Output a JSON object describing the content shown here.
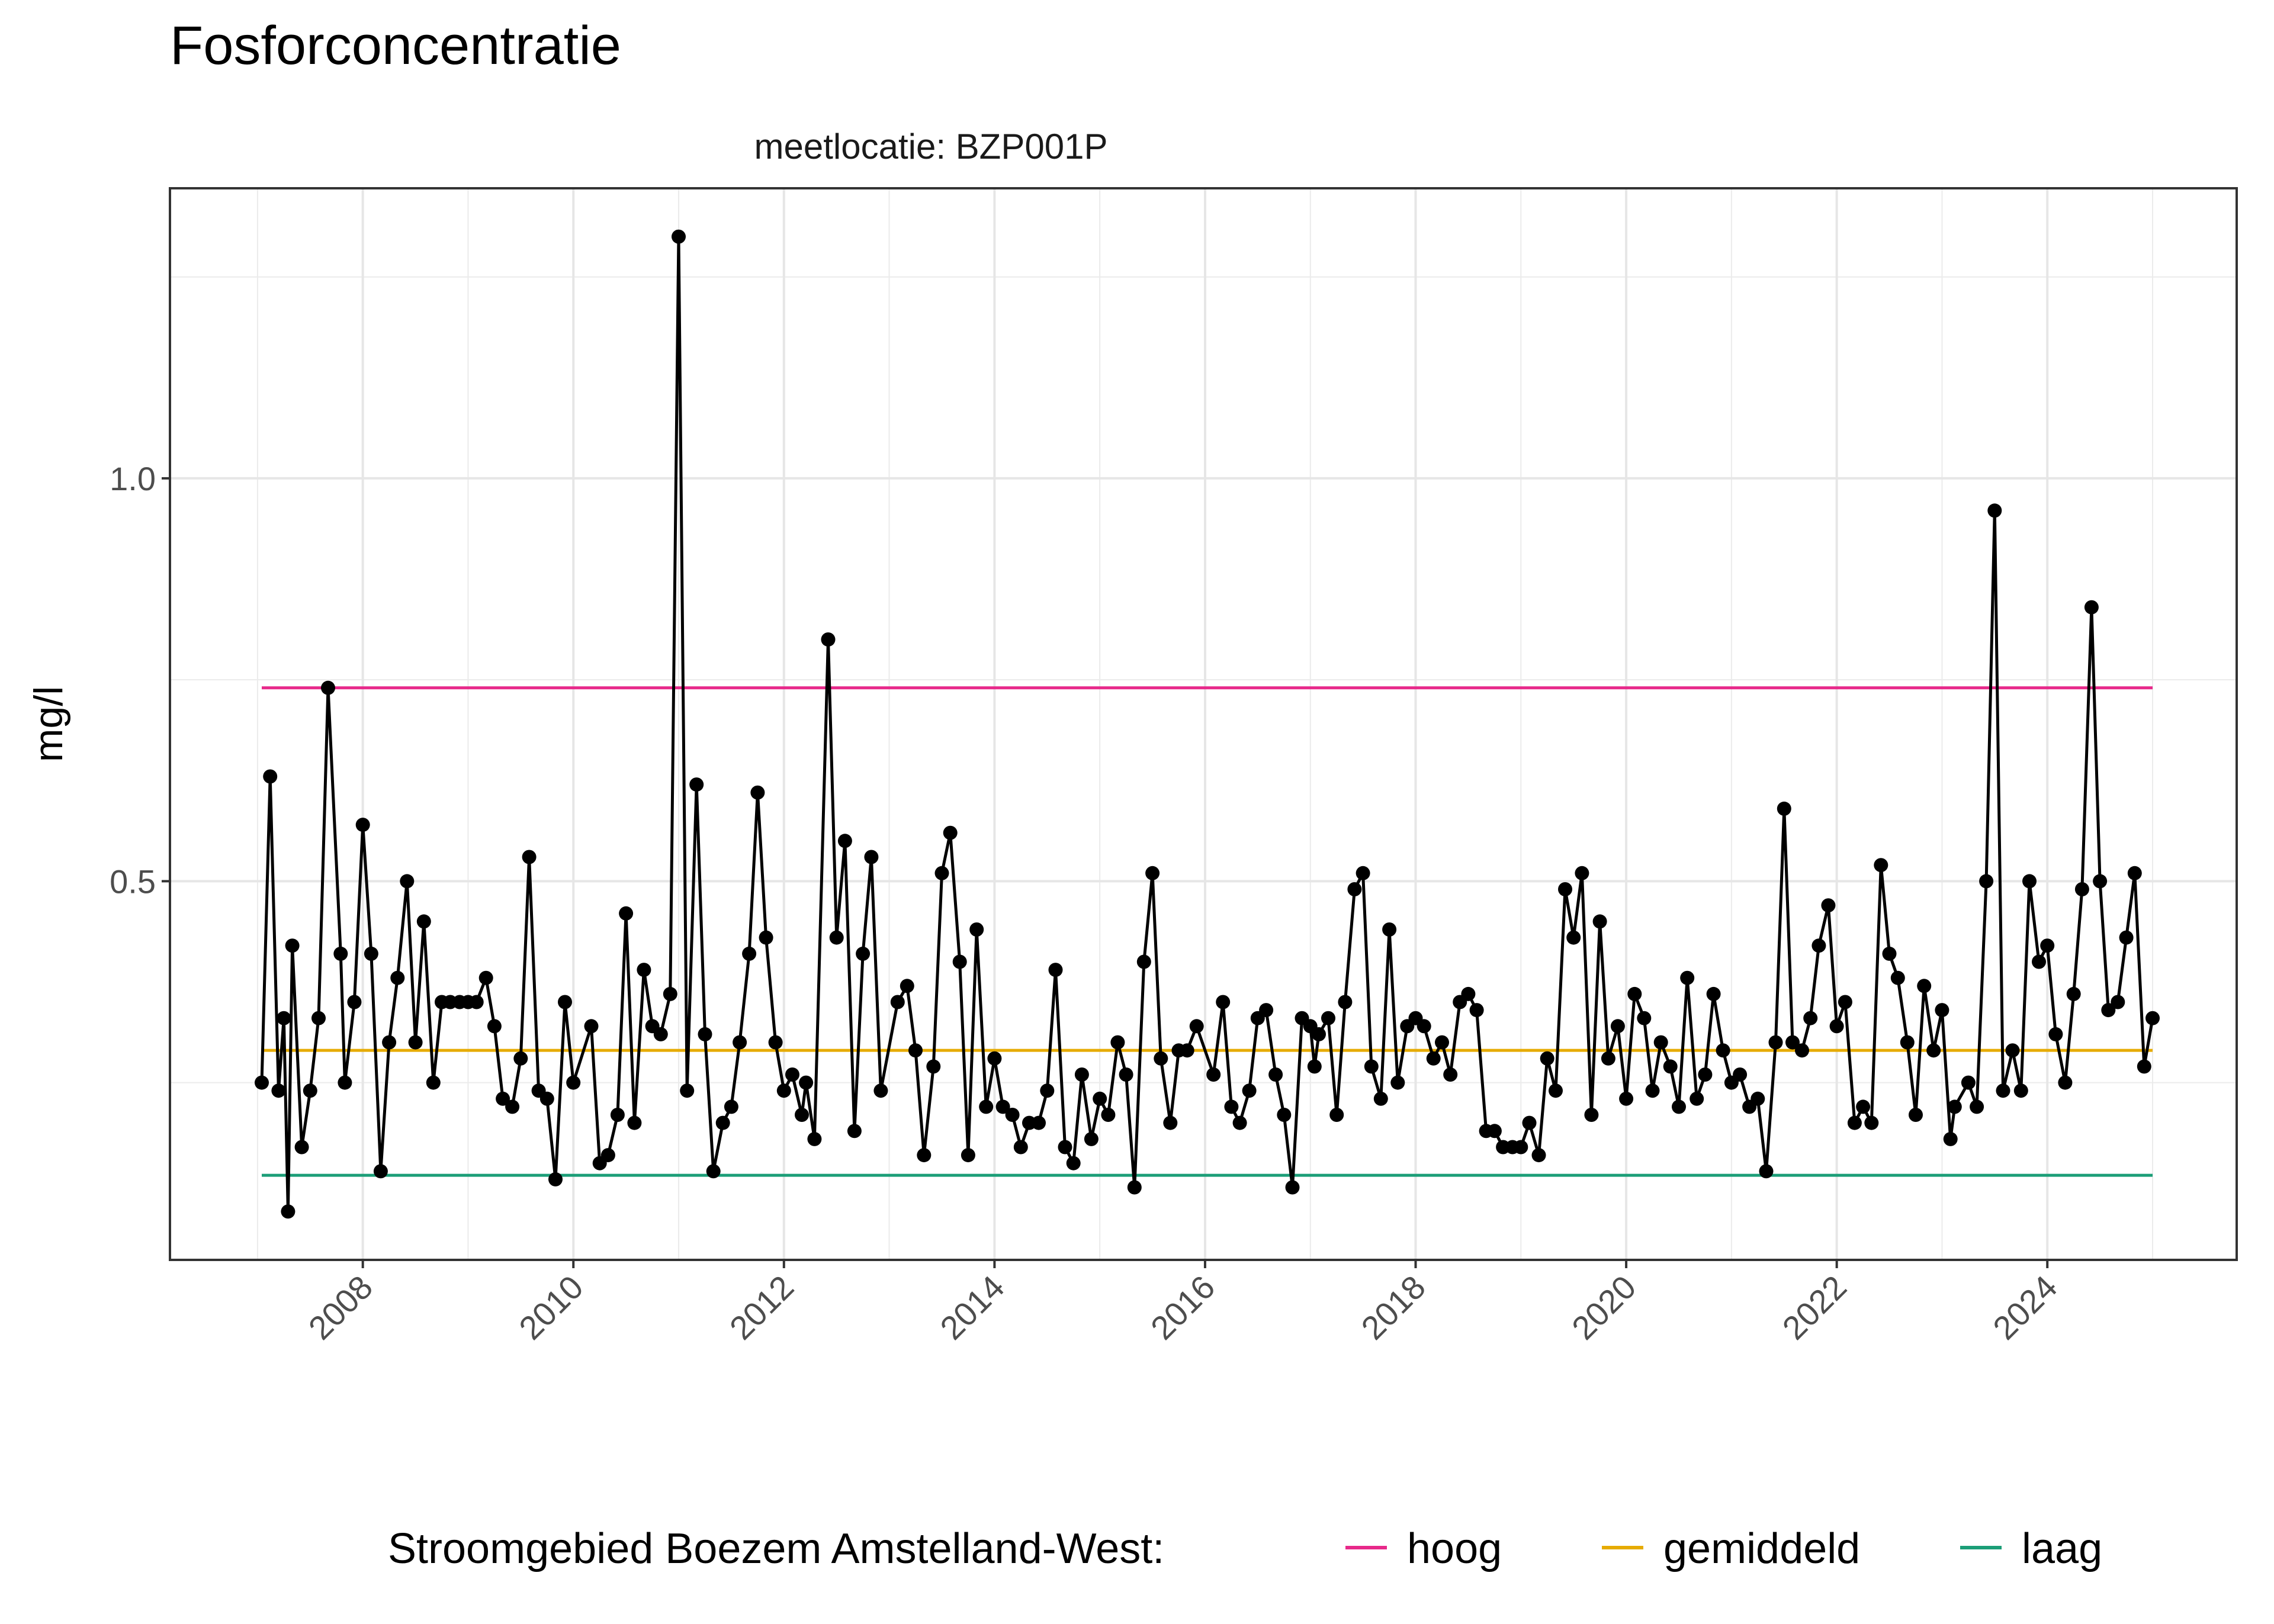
{
  "chart_data": {
    "type": "line",
    "title": "Fosforconcentratie",
    "facet_label": "meetlocatie: BZP001P",
    "ylabel": "mg/l",
    "xlabel": "",
    "xlim": [
      2007.0,
      2025.0
    ],
    "ylim": [
      0.03,
      1.36
    ],
    "grid": true,
    "x_ticks": [
      {
        "value": 2008,
        "label": "2008"
      },
      {
        "value": 2010,
        "label": "2010"
      },
      {
        "value": 2012,
        "label": "2012"
      },
      {
        "value": 2014,
        "label": "2014"
      },
      {
        "value": 2016,
        "label": "2016"
      },
      {
        "value": 2018,
        "label": "2018"
      },
      {
        "value": 2020,
        "label": "2020"
      },
      {
        "value": 2022,
        "label": "2022"
      },
      {
        "value": 2024,
        "label": "2024"
      }
    ],
    "y_ticks": [
      {
        "value": 0.5,
        "label": "0.5"
      },
      {
        "value": 1.0,
        "label": "1.0"
      }
    ],
    "legend": {
      "title": "Stroomgebied Boezem Amstelland-West:",
      "position": "bottom",
      "entries": [
        {
          "label": "hoog",
          "color": "#e7298a"
        },
        {
          "label": "gemiddeld",
          "color": "#e6ab02"
        },
        {
          "label": "laag",
          "color": "#1b9e77"
        }
      ]
    },
    "reference_lines": [
      {
        "name": "hoog",
        "value": 0.74,
        "color": "#e7298a",
        "x_start": 2007.04,
        "x_end": 2025.0
      },
      {
        "name": "gemiddeld",
        "value": 0.29,
        "color": "#e6ab02",
        "x_start": 2007.04,
        "x_end": 2025.0
      },
      {
        "name": "laag",
        "value": 0.135,
        "color": "#1b9e77",
        "x_start": 2007.04,
        "x_end": 2025.0
      }
    ],
    "series": [
      {
        "color": "#000000",
        "points": [
          [
            2007.04,
            0.25
          ],
          [
            2007.12,
            0.63
          ],
          [
            2007.2,
            0.24
          ],
          [
            2007.25,
            0.33
          ],
          [
            2007.29,
            0.09
          ],
          [
            2007.33,
            0.42
          ],
          [
            2007.42,
            0.17
          ],
          [
            2007.5,
            0.24
          ],
          [
            2007.58,
            0.33
          ],
          [
            2007.67,
            0.74
          ],
          [
            2007.79,
            0.41
          ],
          [
            2007.83,
            0.25
          ],
          [
            2007.92,
            0.35
          ],
          [
            2008.0,
            0.57
          ],
          [
            2008.08,
            0.41
          ],
          [
            2008.17,
            0.14
          ],
          [
            2008.25,
            0.3
          ],
          [
            2008.33,
            0.38
          ],
          [
            2008.42,
            0.5
          ],
          [
            2008.5,
            0.3
          ],
          [
            2008.58,
            0.45
          ],
          [
            2008.67,
            0.25
          ],
          [
            2008.75,
            0.35
          ],
          [
            2008.83,
            0.35
          ],
          [
            2008.92,
            0.35
          ],
          [
            2009.0,
            0.35
          ],
          [
            2009.08,
            0.35
          ],
          [
            2009.17,
            0.38
          ],
          [
            2009.25,
            0.32
          ],
          [
            2009.33,
            0.23
          ],
          [
            2009.42,
            0.22
          ],
          [
            2009.5,
            0.28
          ],
          [
            2009.58,
            0.53
          ],
          [
            2009.67,
            0.24
          ],
          [
            2009.75,
            0.23
          ],
          [
            2009.83,
            0.13
          ],
          [
            2009.92,
            0.35
          ],
          [
            2010.0,
            0.25
          ],
          [
            2010.17,
            0.32
          ],
          [
            2010.25,
            0.15
          ],
          [
            2010.33,
            0.16
          ],
          [
            2010.42,
            0.21
          ],
          [
            2010.5,
            0.46
          ],
          [
            2010.58,
            0.2
          ],
          [
            2010.67,
            0.39
          ],
          [
            2010.75,
            0.32
          ],
          [
            2010.83,
            0.31
          ],
          [
            2010.92,
            0.36
          ],
          [
            2011.0,
            1.3
          ],
          [
            2011.08,
            0.24
          ],
          [
            2011.17,
            0.62
          ],
          [
            2011.25,
            0.31
          ],
          [
            2011.33,
            0.14
          ],
          [
            2011.42,
            0.2
          ],
          [
            2011.5,
            0.22
          ],
          [
            2011.58,
            0.3
          ],
          [
            2011.67,
            0.41
          ],
          [
            2011.75,
            0.61
          ],
          [
            2011.83,
            0.43
          ],
          [
            2011.92,
            0.3
          ],
          [
            2012.0,
            0.24
          ],
          [
            2012.08,
            0.26
          ],
          [
            2012.17,
            0.21
          ],
          [
            2012.21,
            0.25
          ],
          [
            2012.29,
            0.18
          ],
          [
            2012.42,
            0.8
          ],
          [
            2012.5,
            0.43
          ],
          [
            2012.58,
            0.55
          ],
          [
            2012.67,
            0.19
          ],
          [
            2012.75,
            0.41
          ],
          [
            2012.83,
            0.53
          ],
          [
            2012.92,
            0.24
          ],
          [
            2013.08,
            0.35
          ],
          [
            2013.17,
            0.37
          ],
          [
            2013.25,
            0.29
          ],
          [
            2013.33,
            0.16
          ],
          [
            2013.42,
            0.27
          ],
          [
            2013.5,
            0.51
          ],
          [
            2013.58,
            0.56
          ],
          [
            2013.67,
            0.4
          ],
          [
            2013.75,
            0.16
          ],
          [
            2013.83,
            0.44
          ],
          [
            2013.92,
            0.22
          ],
          [
            2014.0,
            0.28
          ],
          [
            2014.08,
            0.22
          ],
          [
            2014.17,
            0.21
          ],
          [
            2014.25,
            0.17
          ],
          [
            2014.33,
            0.2
          ],
          [
            2014.42,
            0.2
          ],
          [
            2014.5,
            0.24
          ],
          [
            2014.58,
            0.39
          ],
          [
            2014.67,
            0.17
          ],
          [
            2014.75,
            0.15
          ],
          [
            2014.83,
            0.26
          ],
          [
            2014.92,
            0.18
          ],
          [
            2015.0,
            0.23
          ],
          [
            2015.08,
            0.21
          ],
          [
            2015.17,
            0.3
          ],
          [
            2015.25,
            0.26
          ],
          [
            2015.33,
            0.12
          ],
          [
            2015.42,
            0.4
          ],
          [
            2015.5,
            0.51
          ],
          [
            2015.58,
            0.28
          ],
          [
            2015.67,
            0.2
          ],
          [
            2015.75,
            0.29
          ],
          [
            2015.83,
            0.29
          ],
          [
            2015.92,
            0.32
          ],
          [
            2016.08,
            0.26
          ],
          [
            2016.17,
            0.35
          ],
          [
            2016.25,
            0.22
          ],
          [
            2016.33,
            0.2
          ],
          [
            2016.42,
            0.24
          ],
          [
            2016.5,
            0.33
          ],
          [
            2016.58,
            0.34
          ],
          [
            2016.67,
            0.26
          ],
          [
            2016.75,
            0.21
          ],
          [
            2016.83,
            0.12
          ],
          [
            2016.92,
            0.33
          ],
          [
            2017.0,
            0.32
          ],
          [
            2017.04,
            0.27
          ],
          [
            2017.08,
            0.31
          ],
          [
            2017.17,
            0.33
          ],
          [
            2017.25,
            0.21
          ],
          [
            2017.33,
            0.35
          ],
          [
            2017.42,
            0.49
          ],
          [
            2017.5,
            0.51
          ],
          [
            2017.58,
            0.27
          ],
          [
            2017.67,
            0.23
          ],
          [
            2017.75,
            0.44
          ],
          [
            2017.83,
            0.25
          ],
          [
            2017.92,
            0.32
          ],
          [
            2018.0,
            0.33
          ],
          [
            2018.08,
            0.32
          ],
          [
            2018.17,
            0.28
          ],
          [
            2018.25,
            0.3
          ],
          [
            2018.33,
            0.26
          ],
          [
            2018.42,
            0.35
          ],
          [
            2018.5,
            0.36
          ],
          [
            2018.58,
            0.34
          ],
          [
            2018.67,
            0.19
          ],
          [
            2018.75,
            0.19
          ],
          [
            2018.83,
            0.17
          ],
          [
            2018.92,
            0.17
          ],
          [
            2019.0,
            0.17
          ],
          [
            2019.08,
            0.2
          ],
          [
            2019.17,
            0.16
          ],
          [
            2019.25,
            0.28
          ],
          [
            2019.33,
            0.24
          ],
          [
            2019.42,
            0.49
          ],
          [
            2019.5,
            0.43
          ],
          [
            2019.58,
            0.51
          ],
          [
            2019.67,
            0.21
          ],
          [
            2019.75,
            0.45
          ],
          [
            2019.83,
            0.28
          ],
          [
            2019.92,
            0.32
          ],
          [
            2020.0,
            0.23
          ],
          [
            2020.08,
            0.36
          ],
          [
            2020.17,
            0.33
          ],
          [
            2020.25,
            0.24
          ],
          [
            2020.33,
            0.3
          ],
          [
            2020.42,
            0.27
          ],
          [
            2020.5,
            0.22
          ],
          [
            2020.58,
            0.38
          ],
          [
            2020.67,
            0.23
          ],
          [
            2020.75,
            0.26
          ],
          [
            2020.83,
            0.36
          ],
          [
            2020.92,
            0.29
          ],
          [
            2021.0,
            0.25
          ],
          [
            2021.08,
            0.26
          ],
          [
            2021.17,
            0.22
          ],
          [
            2021.25,
            0.23
          ],
          [
            2021.33,
            0.14
          ],
          [
            2021.42,
            0.3
          ],
          [
            2021.5,
            0.59
          ],
          [
            2021.58,
            0.3
          ],
          [
            2021.67,
            0.29
          ],
          [
            2021.75,
            0.33
          ],
          [
            2021.83,
            0.42
          ],
          [
            2021.92,
            0.47
          ],
          [
            2022.0,
            0.32
          ],
          [
            2022.08,
            0.35
          ],
          [
            2022.17,
            0.2
          ],
          [
            2022.25,
            0.22
          ],
          [
            2022.33,
            0.2
          ],
          [
            2022.42,
            0.52
          ],
          [
            2022.5,
            0.41
          ],
          [
            2022.58,
            0.38
          ],
          [
            2022.67,
            0.3
          ],
          [
            2022.75,
            0.21
          ],
          [
            2022.83,
            0.37
          ],
          [
            2022.92,
            0.29
          ],
          [
            2023.0,
            0.34
          ],
          [
            2023.08,
            0.18
          ],
          [
            2023.12,
            0.22
          ],
          [
            2023.25,
            0.25
          ],
          [
            2023.33,
            0.22
          ],
          [
            2023.42,
            0.5
          ],
          [
            2023.5,
            0.96
          ],
          [
            2023.58,
            0.24
          ],
          [
            2023.67,
            0.29
          ],
          [
            2023.75,
            0.24
          ],
          [
            2023.83,
            0.5
          ],
          [
            2023.92,
            0.4
          ],
          [
            2024.0,
            0.42
          ],
          [
            2024.08,
            0.31
          ],
          [
            2024.17,
            0.25
          ],
          [
            2024.25,
            0.36
          ],
          [
            2024.33,
            0.49
          ],
          [
            2024.42,
            0.84
          ],
          [
            2024.5,
            0.5
          ],
          [
            2024.58,
            0.34
          ],
          [
            2024.67,
            0.35
          ],
          [
            2024.75,
            0.43
          ],
          [
            2024.83,
            0.51
          ],
          [
            2024.92,
            0.27
          ],
          [
            2025.0,
            0.33
          ]
        ]
      }
    ]
  }
}
